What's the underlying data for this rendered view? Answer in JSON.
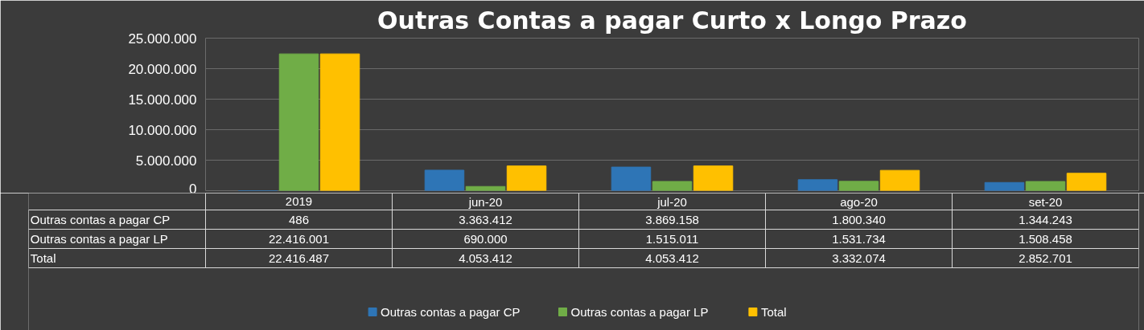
{
  "chart_data": {
    "type": "bar",
    "title": "Outras Contas a pagar Curto x Longo Prazo",
    "categories": [
      "2019",
      "jun-20",
      "jul-20",
      "ago-20",
      "set-20"
    ],
    "series": [
      {
        "name": "Outras contas a pagar CP",
        "color": "#2e75b6",
        "values": [
          486,
          3363412,
          3869158,
          1800340,
          1344243
        ],
        "value_labels": [
          "486",
          "3.363.412",
          "3.869.158",
          "1.800.340",
          "1.344.243"
        ]
      },
      {
        "name": "Outras contas a pagar LP",
        "color": "#70ad47",
        "values": [
          22416001,
          690000,
          1515011,
          1531734,
          1508458
        ],
        "value_labels": [
          "22.416.001",
          "690.000",
          "1.515.011",
          "1.531.734",
          "1.508.458"
        ]
      },
      {
        "name": "Total",
        "color": "#ffc000",
        "values": [
          22416487,
          4053412,
          4053412,
          3332074,
          2852701
        ],
        "value_labels": [
          "22.416.487",
          "4.053.412",
          "4.053.412",
          "3.332.074",
          "2.852.701"
        ]
      }
    ],
    "ylim": [
      0,
      25000000
    ],
    "yticks": [
      {
        "value": 0,
        "label": "0"
      },
      {
        "value": 5000000,
        "label": "5.000.000"
      },
      {
        "value": 10000000,
        "label": "10.000.000"
      },
      {
        "value": 15000000,
        "label": "15.000.000"
      },
      {
        "value": 20000000,
        "label": "20.000.000"
      },
      {
        "value": 25000000,
        "label": "25.000.000"
      }
    ],
    "grid": "y",
    "legend": "bottom"
  }
}
